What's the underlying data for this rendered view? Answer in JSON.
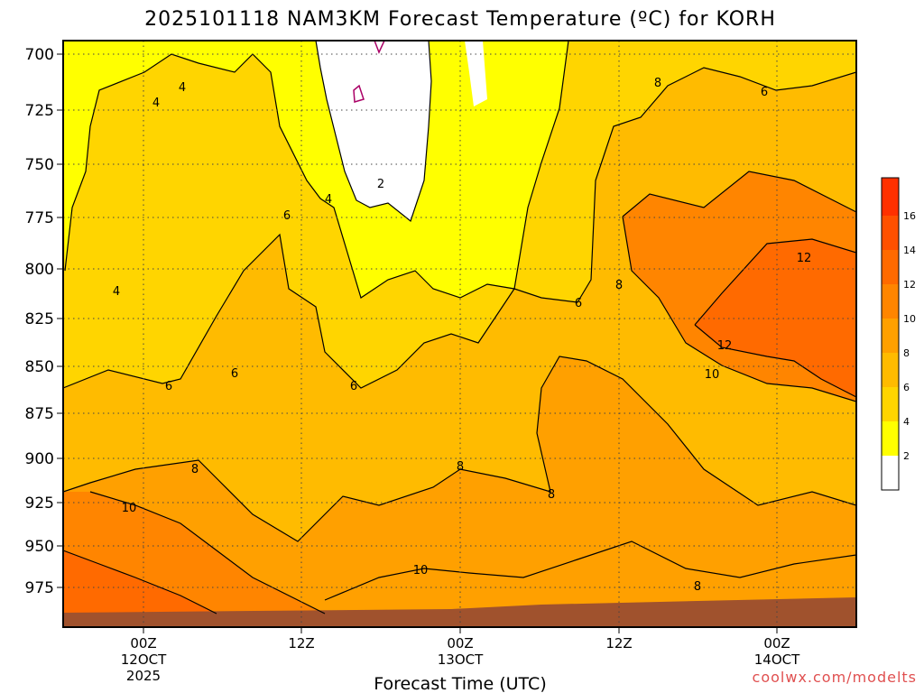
{
  "chart_data": {
    "type": "heatmap",
    "title": "2025101118 NAM3KM Forecast Temperature (ºC) for KORH",
    "xlabel": "Forecast Time (UTC)",
    "ylabel": "",
    "credit": "coolwx.com/modelts",
    "y_axis": {
      "reversed": true,
      "ticks": [
        "700",
        "725",
        "750",
        "775",
        "800",
        "825",
        "850",
        "875",
        "900",
        "925",
        "950",
        "975"
      ]
    },
    "x_axis": {
      "ticks": [
        {
          "line1": "00Z",
          "line2": "12OCT",
          "line3": "2025"
        },
        {
          "line1": "12Z",
          "line2": "",
          "line3": ""
        },
        {
          "line1": "00Z",
          "line2": "13OCT",
          "line3": ""
        },
        {
          "line1": "12Z",
          "line2": "",
          "line3": ""
        },
        {
          "line1": "00Z",
          "line2": "14OCT",
          "line3": ""
        }
      ]
    },
    "colorbar": {
      "levels": [
        "2",
        "4",
        "6",
        "8",
        "10",
        "12",
        "14",
        "16"
      ],
      "colors": [
        "#ffffff",
        "#ffff00",
        "#ffd500",
        "#ffbb00",
        "#ffa000",
        "#ff8500",
        "#ff6a00",
        "#ff5000",
        "#ff3000"
      ]
    },
    "contour_labels": [
      "2",
      "4",
      "4",
      "4",
      "4",
      "6",
      "6",
      "6",
      "6",
      "6",
      "6",
      "8",
      "8",
      "8",
      "8",
      "8",
      "8",
      "10",
      "10",
      "10",
      "12",
      "12"
    ],
    "ground_color": "#a0522d",
    "grid": true
  }
}
